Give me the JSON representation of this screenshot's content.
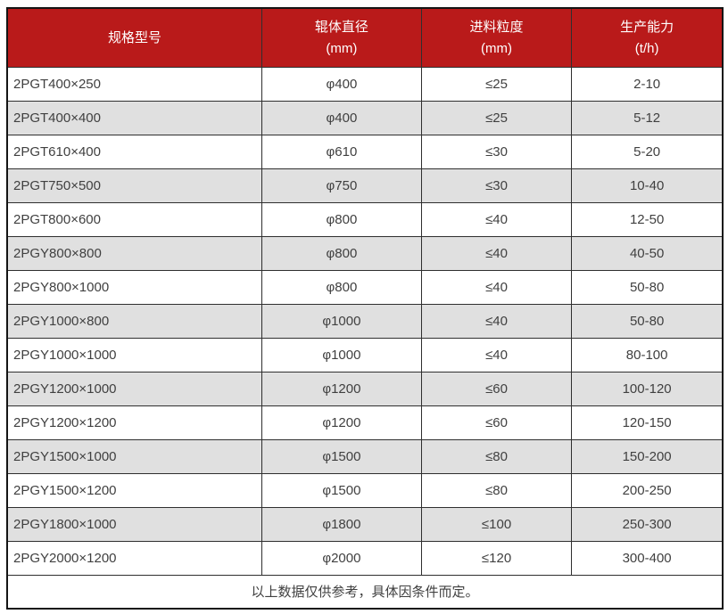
{
  "colors": {
    "header_bg": "#b91a1a",
    "header_text": "#ffffff",
    "row_alt_bg": "#e0e0e0",
    "row_bg": "#ffffff",
    "body_text": "#404040",
    "border": "#2f2f2f"
  },
  "table": {
    "header": [
      {
        "title": "规格型号",
        "unit": ""
      },
      {
        "title": "辊体直径",
        "unit": "(mm)"
      },
      {
        "title": "进料粒度",
        "unit": "(mm)"
      },
      {
        "title": "生产能力",
        "unit": "(t/h)"
      }
    ],
    "rows": [
      [
        "2PGT400×250",
        "φ400",
        "≤25",
        "2-10"
      ],
      [
        "2PGT400×400",
        "φ400",
        "≤25",
        "5-12"
      ],
      [
        "2PGT610×400",
        "φ610",
        "≤30",
        "5-20"
      ],
      [
        "2PGT750×500",
        "φ750",
        "≤30",
        "10-40"
      ],
      [
        "2PGT800×600",
        "φ800",
        "≤40",
        "12-50"
      ],
      [
        "2PGY800×800",
        "φ800",
        "≤40",
        "40-50"
      ],
      [
        "2PGY800×1000",
        "φ800",
        "≤40",
        "50-80"
      ],
      [
        "2PGY1000×800",
        "φ1000",
        "≤40",
        "50-80"
      ],
      [
        "2PGY1000×1000",
        "φ1000",
        "≤40",
        "80-100"
      ],
      [
        "2PGY1200×1000",
        "φ1200",
        "≤60",
        "100-120"
      ],
      [
        "2PGY1200×1200",
        "φ1200",
        "≤60",
        "120-150"
      ],
      [
        "2PGY1500×1000",
        "φ1500",
        "≤80",
        "150-200"
      ],
      [
        "2PGY1500×1200",
        "φ1500",
        "≤80",
        "200-250"
      ],
      [
        "2PGY1800×1000",
        "φ1800",
        "≤100",
        "250-300"
      ],
      [
        "2PGY2000×1200",
        "φ2000",
        "≤120",
        "300-400"
      ]
    ],
    "footer_note": "以上数据仅供参考，具体因条件而定。"
  },
  "chart_data": {
    "type": "table",
    "title": "",
    "columns": [
      "规格型号",
      "辊体直径 (mm)",
      "进料粒度 (mm)",
      "生产能力 (t/h)"
    ],
    "rows": [
      [
        "2PGT400×250",
        "φ400",
        "≤25",
        "2-10"
      ],
      [
        "2PGT400×400",
        "φ400",
        "≤25",
        "5-12"
      ],
      [
        "2PGT610×400",
        "φ610",
        "≤30",
        "5-20"
      ],
      [
        "2PGT750×500",
        "φ750",
        "≤30",
        "10-40"
      ],
      [
        "2PGT800×600",
        "φ800",
        "≤40",
        "12-50"
      ],
      [
        "2PGY800×800",
        "φ800",
        "≤40",
        "40-50"
      ],
      [
        "2PGY800×1000",
        "φ800",
        "≤40",
        "50-80"
      ],
      [
        "2PGY1000×800",
        "φ1000",
        "≤40",
        "50-80"
      ],
      [
        "2PGY1000×1000",
        "φ1000",
        "≤40",
        "80-100"
      ],
      [
        "2PGY1200×1000",
        "φ1200",
        "≤60",
        "100-120"
      ],
      [
        "2PGY1200×1200",
        "φ1200",
        "≤60",
        "120-150"
      ],
      [
        "2PGY1500×1000",
        "φ1500",
        "≤80",
        "150-200"
      ],
      [
        "2PGY1500×1200",
        "φ1500",
        "≤80",
        "200-250"
      ],
      [
        "2PGY1800×1000",
        "φ1800",
        "≤100",
        "250-300"
      ],
      [
        "2PGY2000×1200",
        "φ2000",
        "≤120",
        "300-400"
      ]
    ],
    "footnote": "以上数据仅供参考，具体因条件而定。"
  }
}
